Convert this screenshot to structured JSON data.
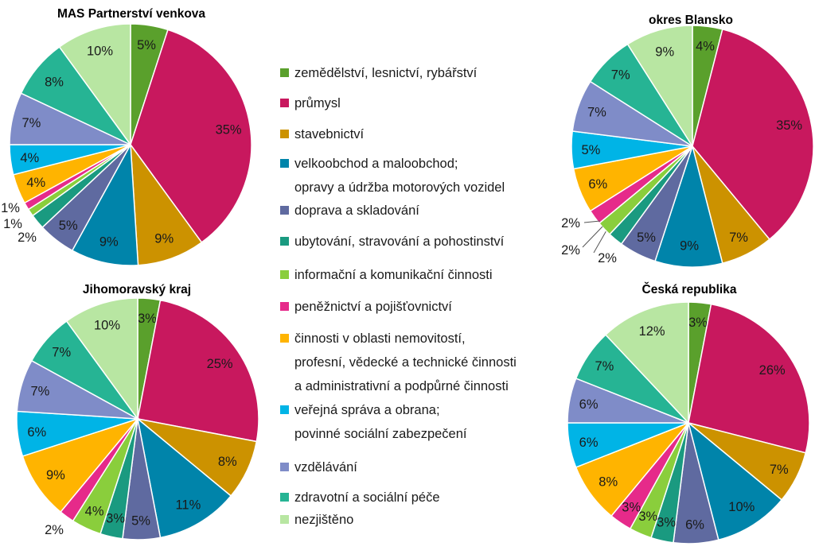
{
  "chart_data": {
    "type": "pie",
    "categories": [
      "zemědělství, lesnictví, rybářství",
      "průmysl",
      "stavebnictví",
      "velkoobchod a maloobchod; opravy a údržba motorových vozidel",
      "doprava a skladování",
      "ubytování, stravování a pohostinství",
      "informační a komunikační činnosti",
      "peněžnictví a pojišťovnictví",
      "činnosti v oblasti nemovitostí, profesní, vědecké a technické činnosti a administrativní a podpůrné činnosti",
      "veřejná správa a obrana; povinné sociální zabezpečení",
      "vzdělávání",
      "zdravotní a sociální péče",
      "nezjištěno"
    ],
    "colors": [
      "#5aa02c",
      "#c8185e",
      "#cc9200",
      "#0084aa",
      "#5f6aa0",
      "#1a9a80",
      "#8ace3c",
      "#e62a8a",
      "#ffb400",
      "#00b4e6",
      "#7f8cc8",
      "#26b494",
      "#b8e6a2"
    ],
    "pies": [
      {
        "title": "MAS Partnerství venkova",
        "values": [
          5,
          35,
          9,
          9,
          5,
          2,
          1,
          1,
          4,
          4,
          7,
          8,
          10
        ],
        "labels": [
          "5%",
          "35%",
          "9%",
          "9%",
          "5%",
          "2%",
          "1%",
          "1%",
          "4%",
          "4%",
          "7%",
          "8%",
          "10%"
        ]
      },
      {
        "title": "okres Blansko",
        "values": [
          4,
          35,
          7,
          9,
          5,
          2,
          2,
          2,
          6,
          5,
          7,
          7,
          9
        ],
        "labels": [
          "4%",
          "35%",
          "7%",
          "9%",
          "5%",
          "2%",
          "2%",
          "2%",
          "6%",
          "5%",
          "7%",
          "7%",
          "9%"
        ]
      },
      {
        "title": "Jihomoravský kraj",
        "values": [
          3,
          25,
          8,
          11,
          5,
          3,
          4,
          2,
          9,
          6,
          7,
          7,
          10
        ],
        "labels": [
          "3%",
          "25%",
          "8%",
          "11%",
          "5%",
          "3%",
          "4%",
          "2%",
          "9%",
          "6%",
          "7%",
          "7%",
          "10%"
        ]
      },
      {
        "title": "Česká republika",
        "values": [
          3,
          26,
          7,
          10,
          6,
          3,
          3,
          3,
          8,
          6,
          6,
          7,
          12
        ],
        "labels": [
          "3%",
          "26%",
          "7%",
          "10%",
          "6%",
          "3%",
          "3%",
          "3%",
          "8%",
          "6%",
          "6%",
          "7%",
          "12%"
        ]
      }
    ],
    "legend": {
      "position": "center",
      "items": [
        {
          "lines": [
            "zemědělství, lesnictví, rybářství"
          ]
        },
        {
          "lines": [
            "průmysl"
          ]
        },
        {
          "lines": [
            "stavebnictví"
          ]
        },
        {
          "lines": [
            "velkoobchod a maloobchod;",
            "opravy a údržba motorových vozidel"
          ]
        },
        {
          "lines": [
            "doprava a skladování"
          ]
        },
        {
          "lines": [
            "ubytování, stravování a pohostinství"
          ]
        },
        {
          "lines": [
            "informační a komunikační činnosti"
          ]
        },
        {
          "lines": [
            "peněžnictví a pojišťovnictví"
          ]
        },
        {
          "lines": [
            "činnosti v oblasti nemovitostí,",
            "profesní, vědecké a technické činnosti",
            "a administrativní a podpůrné činnosti"
          ]
        },
        {
          "lines": [
            "veřejná správa a obrana;",
            "povinné sociální zabezpečení"
          ]
        },
        {
          "lines": [
            "vzdělávání"
          ]
        },
        {
          "lines": [
            "zdravotní a sociální péče"
          ]
        },
        {
          "lines": [
            "nezjištěno"
          ]
        }
      ]
    }
  }
}
